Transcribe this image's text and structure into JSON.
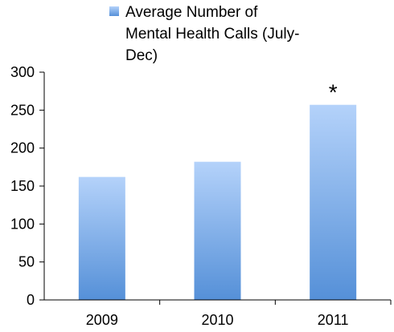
{
  "chart_data": {
    "type": "bar",
    "categories": [
      "2009",
      "2010",
      "2011"
    ],
    "series": [
      {
        "name": "Average Number of Mental Health Calls (July-Dec)",
        "values": [
          162,
          182,
          257
        ]
      }
    ],
    "legend": {
      "position": "top",
      "lines": [
        "Average Number of",
        "Mental Health Calls (July-",
        "Dec)"
      ]
    },
    "ylim": [
      0,
      300
    ],
    "yticks": [
      "0",
      "50",
      "100",
      "150",
      "200",
      "250",
      "300"
    ],
    "grid": false,
    "annotations": [
      {
        "category": "2011",
        "text": "*"
      }
    ],
    "colors": {
      "bar_top": "#b4d2fa",
      "bar_bottom": "#5590d8",
      "axis": "#000000"
    }
  }
}
